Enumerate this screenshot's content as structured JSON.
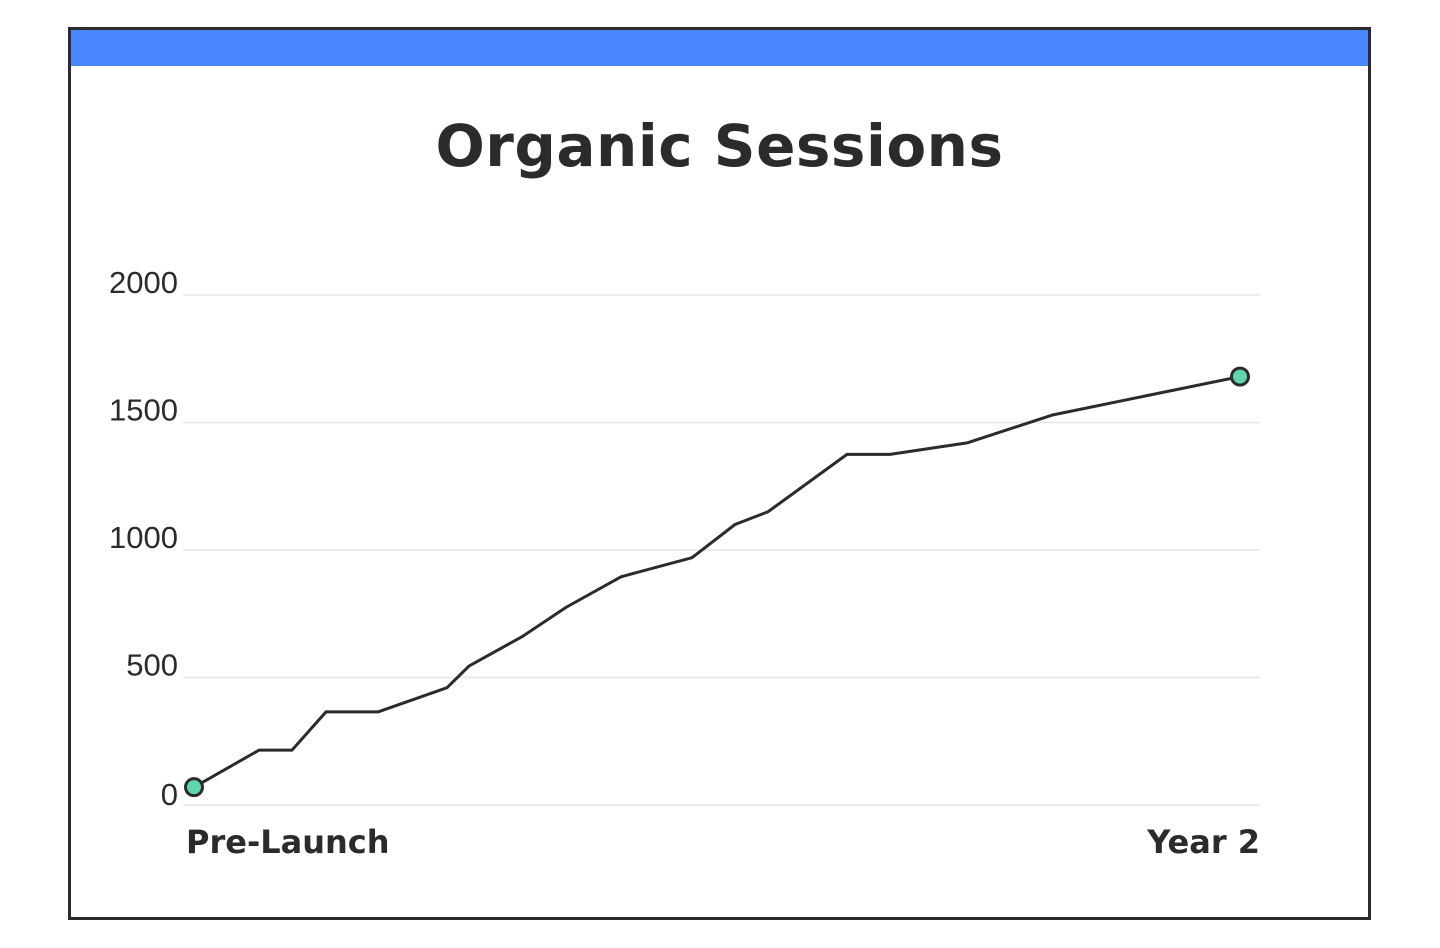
{
  "chart_data": {
    "type": "line",
    "title": "Organic Sessions",
    "xlabel": "",
    "ylabel": "",
    "x_tick_labels": [
      "Pre-Launch",
      "Year 2"
    ],
    "y_ticks": [
      0,
      500,
      1000,
      1500,
      2000
    ],
    "ylim": [
      0,
      2000
    ],
    "grid": true,
    "colors": {
      "accent": "#4a86fd",
      "line": "#2b2b2b",
      "marker": "#5fd6ad",
      "grid": "#e6e6e6"
    },
    "series": [
      {
        "values": [
          70,
          215,
          215,
          365,
          365,
          460,
          545,
          660,
          775,
          895,
          970,
          1100,
          1150,
          1375,
          1375,
          1420,
          1530,
          1680
        ]
      }
    ]
  }
}
